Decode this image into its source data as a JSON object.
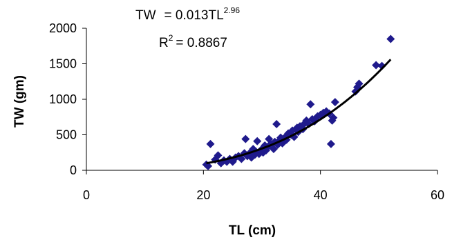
{
  "chart_data": {
    "type": "scatter",
    "title": "",
    "xlabel": "TL (cm)",
    "ylabel": "TW (gm)",
    "xlim": [
      0,
      60
    ],
    "ylim": [
      0,
      2000
    ],
    "xticks": [
      "0",
      "20",
      "40",
      "60"
    ],
    "yticks": [
      "0",
      "500",
      "1000",
      "1500",
      "2000"
    ],
    "grid": false,
    "legend": "none",
    "equation": {
      "lhs": "TW",
      "rhs": "= 0.013TL",
      "exponent": "2.96"
    },
    "r_squared": {
      "label": "R",
      "exponent": "2",
      "value": "= 0.8867"
    },
    "marker_color": "#1f1a8c",
    "trend_color": "#000000",
    "trendline": {
      "type": "power",
      "a": 0.013,
      "b": 2.96,
      "x_range": [
        20.5,
        52
      ]
    },
    "points": [
      [
        20.5,
        80
      ],
      [
        20.8,
        60
      ],
      [
        21.2,
        370
      ],
      [
        22,
        150
      ],
      [
        22.5,
        210
      ],
      [
        23,
        100
      ],
      [
        23.5,
        140
      ],
      [
        24,
        120
      ],
      [
        24.5,
        160
      ],
      [
        25,
        120
      ],
      [
        25.5,
        180
      ],
      [
        26,
        200
      ],
      [
        26.5,
        160
      ],
      [
        27,
        240
      ],
      [
        27.2,
        440
      ],
      [
        27.5,
        200
      ],
      [
        28,
        250
      ],
      [
        28.2,
        180
      ],
      [
        28.5,
        300
      ],
      [
        28.8,
        220
      ],
      [
        29,
        260
      ],
      [
        29.2,
        410
      ],
      [
        29.5,
        230
      ],
      [
        30,
        300
      ],
      [
        30.2,
        250
      ],
      [
        30.5,
        350
      ],
      [
        30.7,
        280
      ],
      [
        31,
        330
      ],
      [
        31.2,
        440
      ],
      [
        31.5,
        370
      ],
      [
        32,
        300
      ],
      [
        32.2,
        400
      ],
      [
        32.5,
        650
      ],
      [
        32.7,
        360
      ],
      [
        33,
        420
      ],
      [
        33.2,
        460
      ],
      [
        33.5,
        380
      ],
      [
        34,
        470
      ],
      [
        34.2,
        430
      ],
      [
        34.5,
        520
      ],
      [
        35,
        500
      ],
      [
        35.2,
        560
      ],
      [
        35.5,
        470
      ],
      [
        36,
        600
      ],
      [
        36.2,
        540
      ],
      [
        36.5,
        620
      ],
      [
        37,
        580
      ],
      [
        37.3,
        660
      ],
      [
        37.6,
        700
      ],
      [
        38,
        650
      ],
      [
        38.3,
        930
      ],
      [
        38.6,
        720
      ],
      [
        39,
        690
      ],
      [
        39.5,
        760
      ],
      [
        40,
        780
      ],
      [
        40.5,
        810
      ],
      [
        41,
        830
      ],
      [
        41.5,
        800
      ],
      [
        41.8,
        370
      ],
      [
        42,
        700
      ],
      [
        42.2,
        740
      ],
      [
        42.5,
        960
      ],
      [
        46,
        1110
      ],
      [
        46.3,
        1170
      ],
      [
        46.6,
        1220
      ],
      [
        49.5,
        1480
      ],
      [
        50.5,
        1470
      ],
      [
        52,
        1850
      ]
    ]
  }
}
